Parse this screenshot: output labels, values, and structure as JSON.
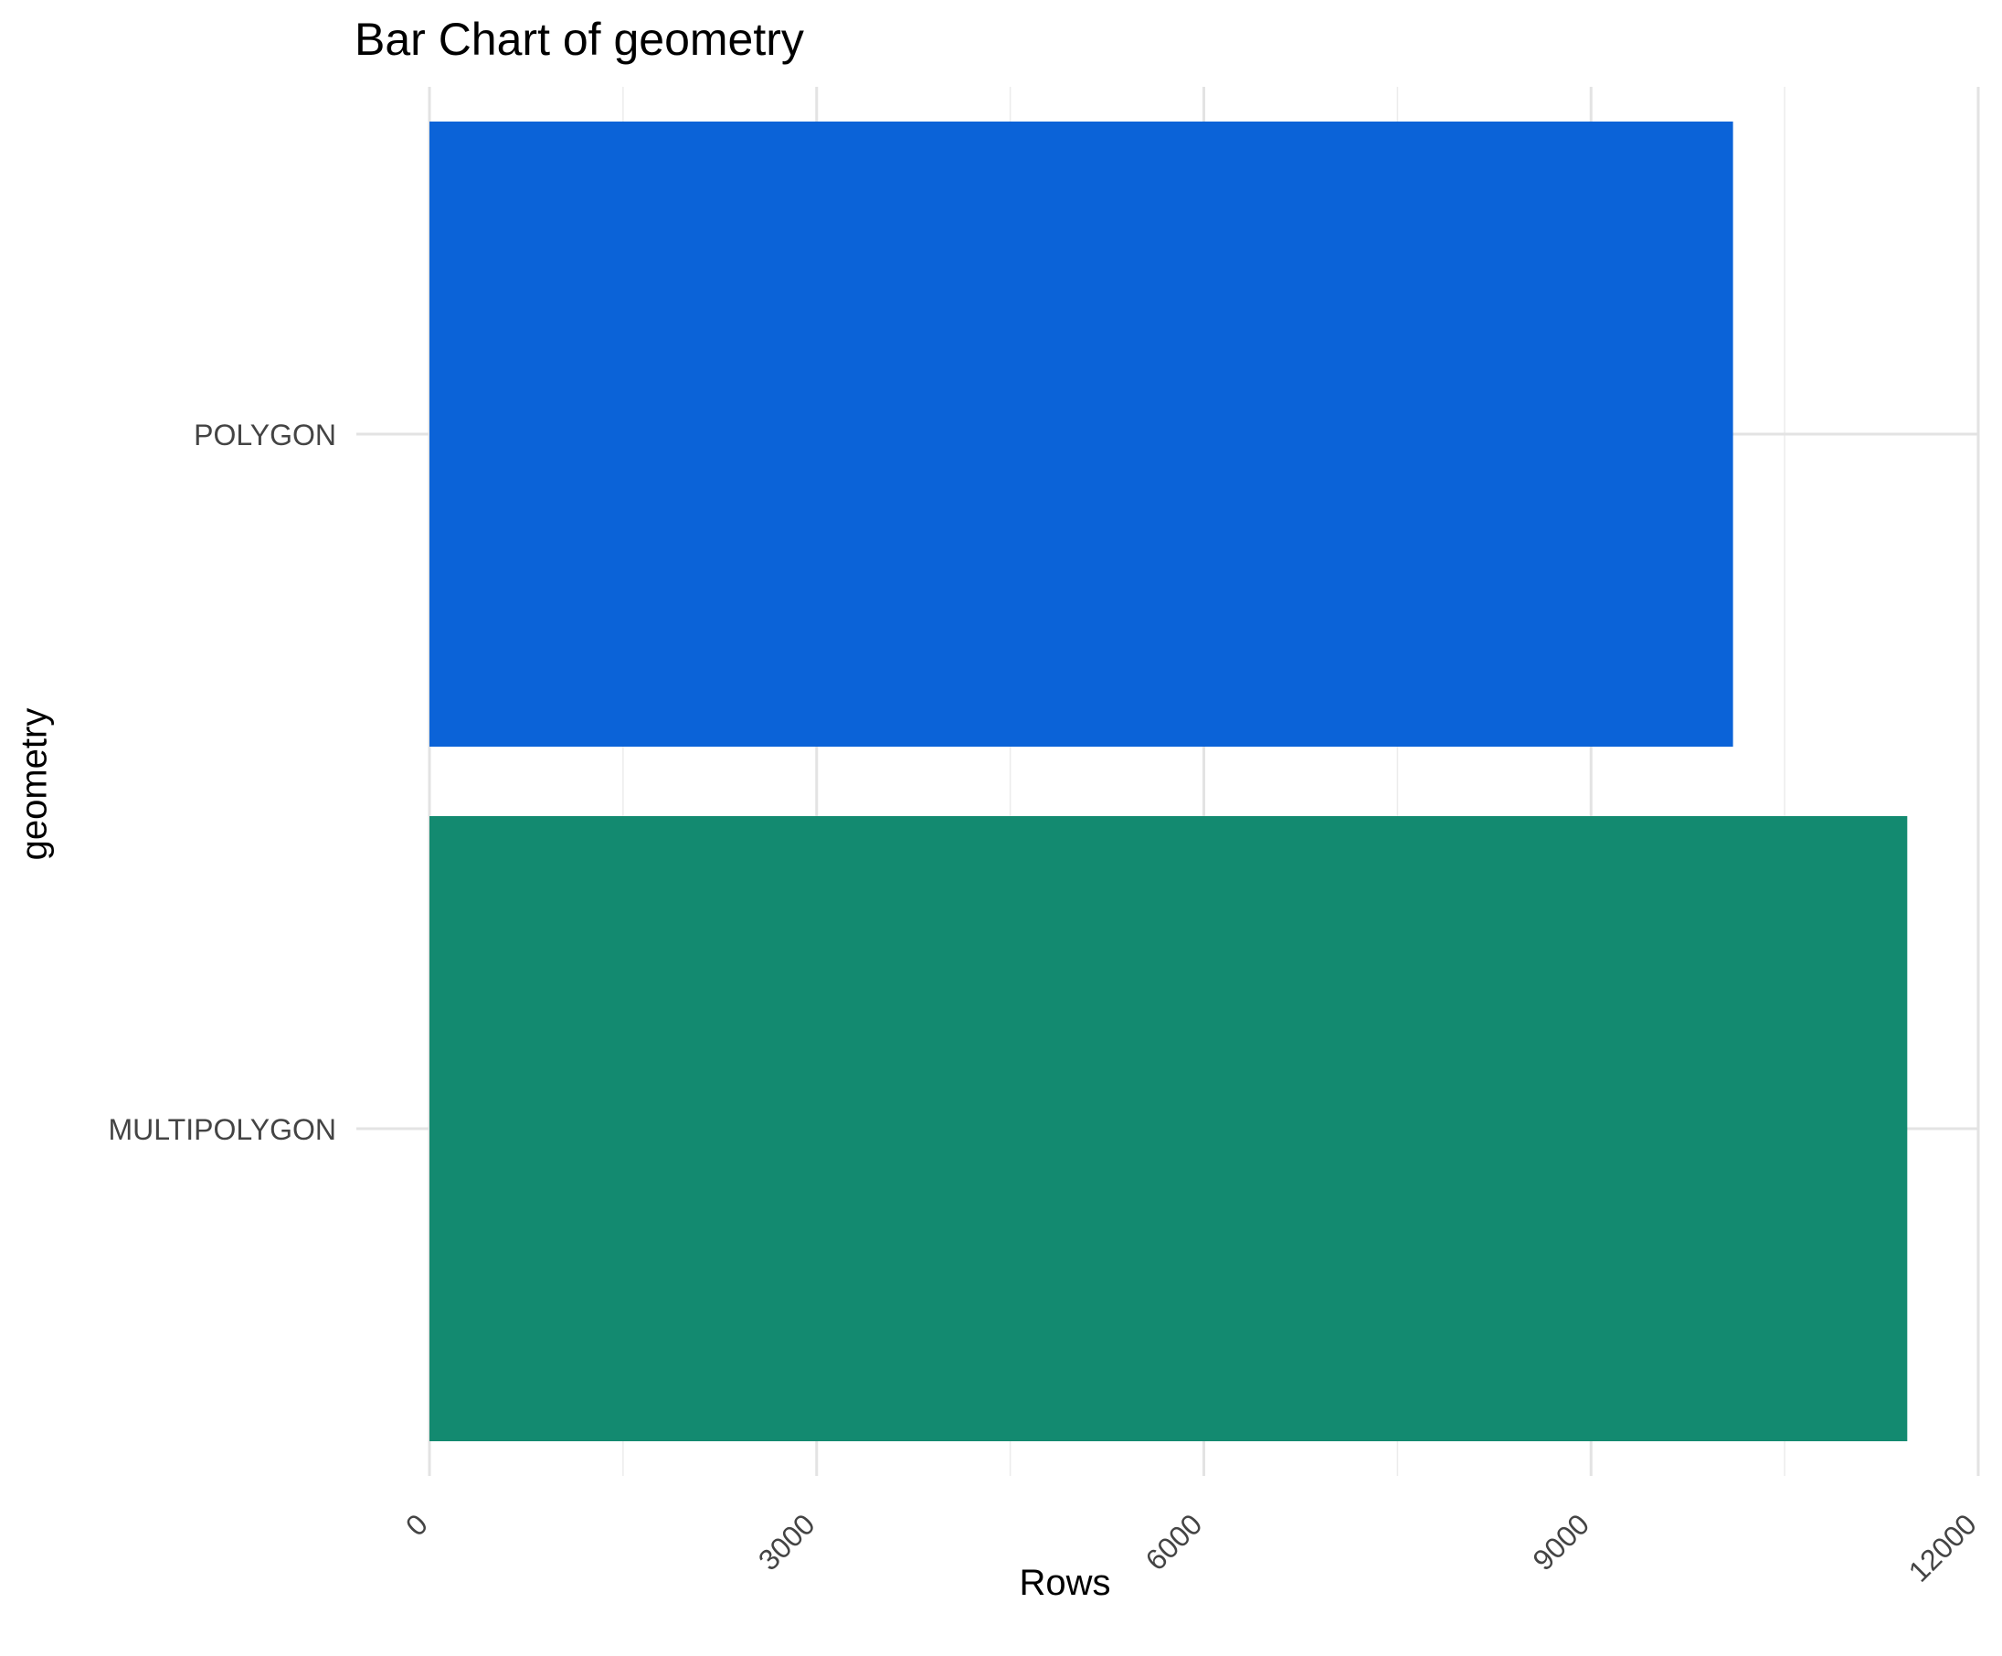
{
  "chart_data": {
    "type": "bar",
    "orientation": "horizontal",
    "title": "Bar Chart of geometry",
    "xlabel": "Rows",
    "ylabel": "geometry",
    "categories": [
      "POLYGON",
      "MULTIPOLYGON"
    ],
    "values": [
      10100,
      11450
    ],
    "colors": [
      "#0b63d8",
      "#138a70"
    ],
    "xlim": [
      0,
      12000
    ],
    "xticks": [
      0,
      3000,
      6000,
      9000,
      12000
    ],
    "xtick_labels": [
      "0",
      "3000",
      "6000",
      "9000",
      "12000"
    ],
    "grid": true,
    "legend": "none"
  }
}
